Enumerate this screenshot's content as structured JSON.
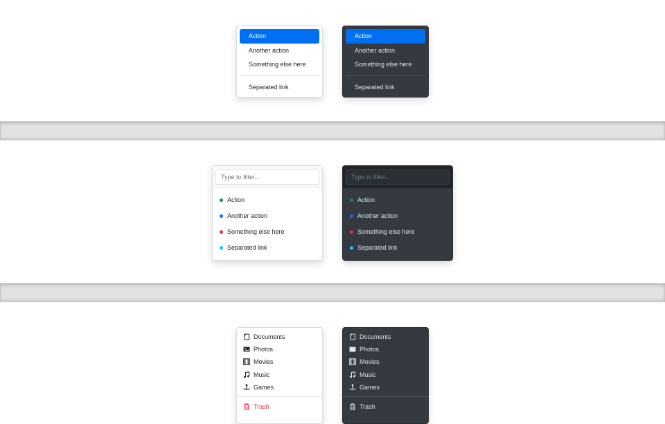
{
  "colors": {
    "active": "#0070f3",
    "success": "#198754",
    "primary": "#0d6efd",
    "danger": "#dc3545",
    "info": "#0dcaf0",
    "dark_bg": "#343a40"
  },
  "section1": {
    "items": [
      {
        "label": "Action",
        "active": true
      },
      {
        "label": "Another action"
      },
      {
        "label": "Something else here"
      },
      {
        "divider": true
      },
      {
        "label": "Separated link"
      }
    ]
  },
  "section2": {
    "placeholder": "Type to filter...",
    "items": [
      {
        "label": "Action",
        "dot": "#198754"
      },
      {
        "label": "Another action",
        "dot": "#0d6efd"
      },
      {
        "label": "Something else here",
        "dot": "#dc3545"
      },
      {
        "label": "Separated link",
        "dot": "#0dcaf0"
      }
    ]
  },
  "section3": {
    "items": [
      {
        "label": "Documents",
        "icon": "file-icon"
      },
      {
        "label": "Photos",
        "icon": "image-icon"
      },
      {
        "label": "Movies",
        "icon": "film-icon"
      },
      {
        "label": "Music",
        "icon": "music-note-icon"
      },
      {
        "label": "Games",
        "icon": "joystick-icon"
      },
      {
        "divider": true
      },
      {
        "label": "Trash",
        "icon": "trash-icon",
        "danger": true
      }
    ]
  }
}
